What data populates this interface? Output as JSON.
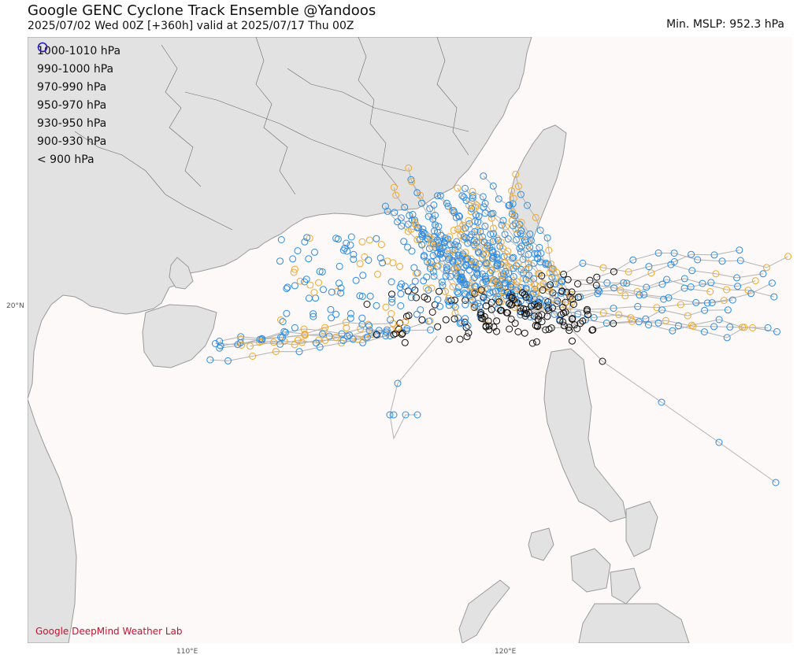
{
  "header": {
    "title": "Google GENC Cyclone Track Ensemble @Yandoos",
    "subtitle": "2025/07/02  Wed  00Z [+360h] valid at 2025/07/17  Thu  00Z",
    "min_mslp": "Min. MSLP: 952.3 hPa"
  },
  "legend": [
    {
      "label": "1000-1010 hPa",
      "color": "#111111"
    },
    {
      "label": "990-1000 hPa",
      "color": "#2b8ce6"
    },
    {
      "label": "970-990 hPa",
      "color": "#f0a830"
    },
    {
      "label": "950-970 hPa",
      "color": "#e8338a"
    },
    {
      "label": "930-950 hPa",
      "color": "#d8203c"
    },
    {
      "label": "900-930 hPa",
      "color": "#6a2a9a"
    },
    {
      "label": "< 900 hPa",
      "color": "#1a24c8"
    }
  ],
  "axes": {
    "lat_label": "20°N",
    "lon_labels": [
      "110°E",
      "120°E"
    ]
  },
  "credit": "Google DeepMind Weather Lab",
  "colors": {
    "land": "#e2e2e2",
    "ocean": "#fcf9f8",
    "track": "#b3b3b3"
  }
}
